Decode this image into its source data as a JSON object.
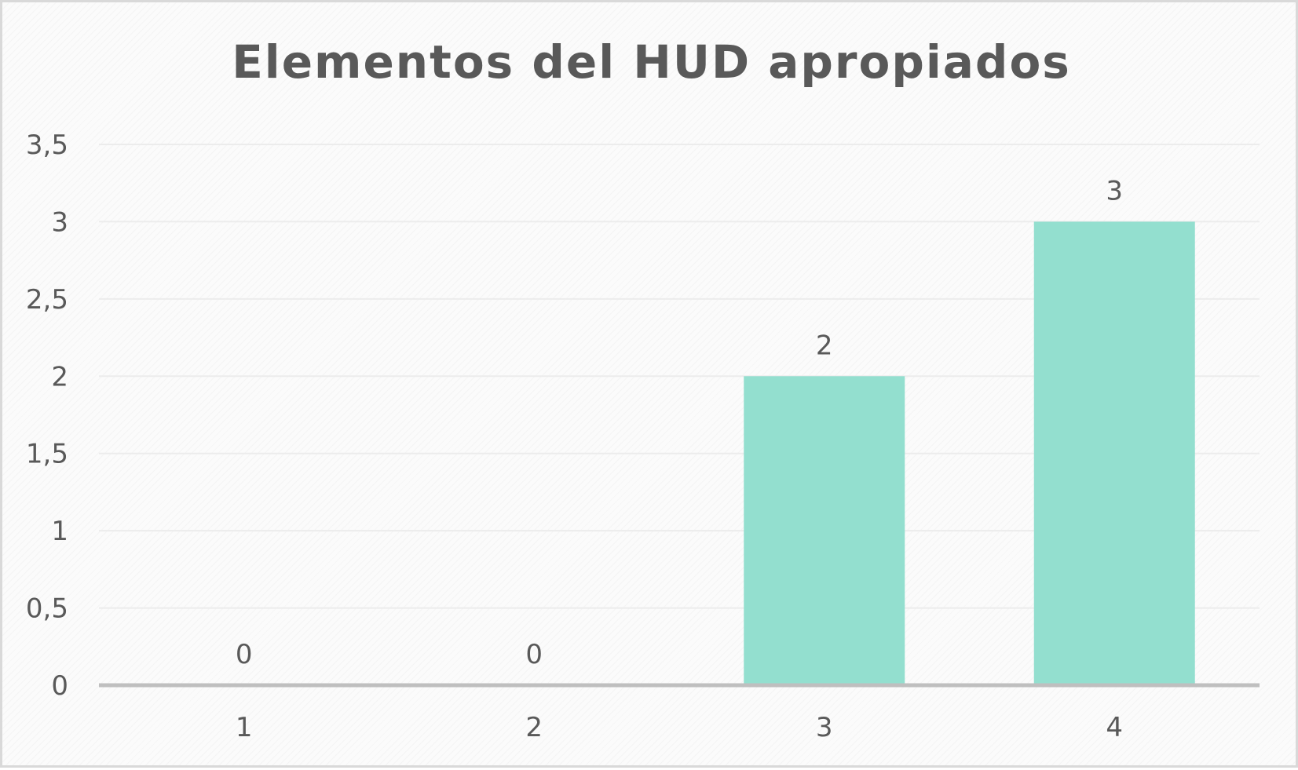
{
  "chart_data": {
    "type": "bar",
    "title": "Elementos del HUD apropiados",
    "xlabel": "",
    "ylabel": "",
    "categories": [
      "1",
      "2",
      "3",
      "4"
    ],
    "values": [
      0,
      0,
      2,
      3
    ],
    "data_labels": [
      "0",
      "0",
      "2",
      "3"
    ],
    "ylim": [
      0,
      3.5
    ],
    "yticks": [
      0,
      0.5,
      1,
      1.5,
      2,
      2.5,
      3,
      3.5
    ],
    "ytick_labels": [
      "0",
      "0,5",
      "1",
      "1,5",
      "2",
      "2,5",
      "3",
      "3,5"
    ],
    "grid": true,
    "legend": "none",
    "colors": {
      "bar": "#93dfcf",
      "text": "#595959",
      "gridline": "#ececec",
      "axis_line": "#bfbfbf"
    }
  }
}
